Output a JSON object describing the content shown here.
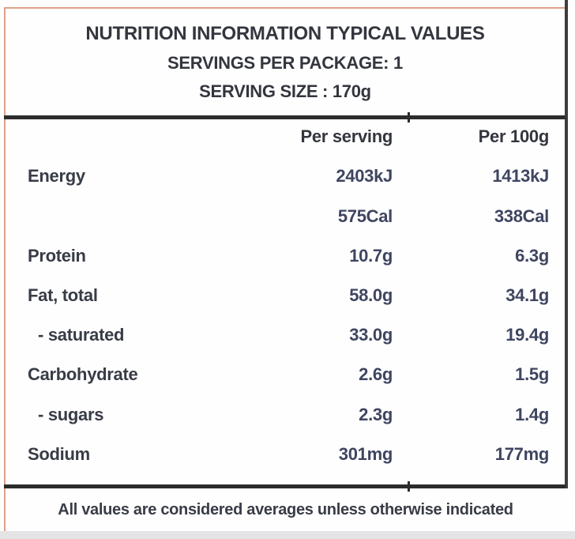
{
  "header": {
    "title": "NUTRITION INFORMATION TYPICAL VALUES",
    "servings_per_package": "SERVINGS PER PACKAGE: 1",
    "serving_size": "SERVING SIZE : 170g"
  },
  "table": {
    "columns": [
      "",
      "Per serving",
      "Per 100g"
    ],
    "rows": [
      {
        "label": "Energy",
        "per_serving": "2403kJ",
        "per_100g": "1413kJ"
      },
      {
        "label": "",
        "per_serving": "575Cal",
        "per_100g": "338Cal"
      },
      {
        "label": "Protein",
        "per_serving": "10.7g",
        "per_100g": "6.3g"
      },
      {
        "label": "Fat, total",
        "per_serving": "58.0g",
        "per_100g": "34.1g"
      },
      {
        "label": "- saturated",
        "per_serving": "33.0g",
        "per_100g": "19.4g"
      },
      {
        "label": "Carbohydrate",
        "per_serving": "2.6g",
        "per_100g": "1.5g"
      },
      {
        "label": "- sugars",
        "per_serving": "2.3g",
        "per_100g": "1.4g"
      },
      {
        "label": "Sodium",
        "per_serving": "301mg",
        "per_100g": "177mg"
      }
    ]
  },
  "footer": {
    "note": "All values are considered averages unless otherwise indicated"
  },
  "colors": {
    "accent_border": "#dfa189",
    "rule": "#2c2c2c",
    "right_rule": "#3d3d3d",
    "text": "#3b4050",
    "background": "#fefefe",
    "bottom_band": "#e4e4e6"
  }
}
